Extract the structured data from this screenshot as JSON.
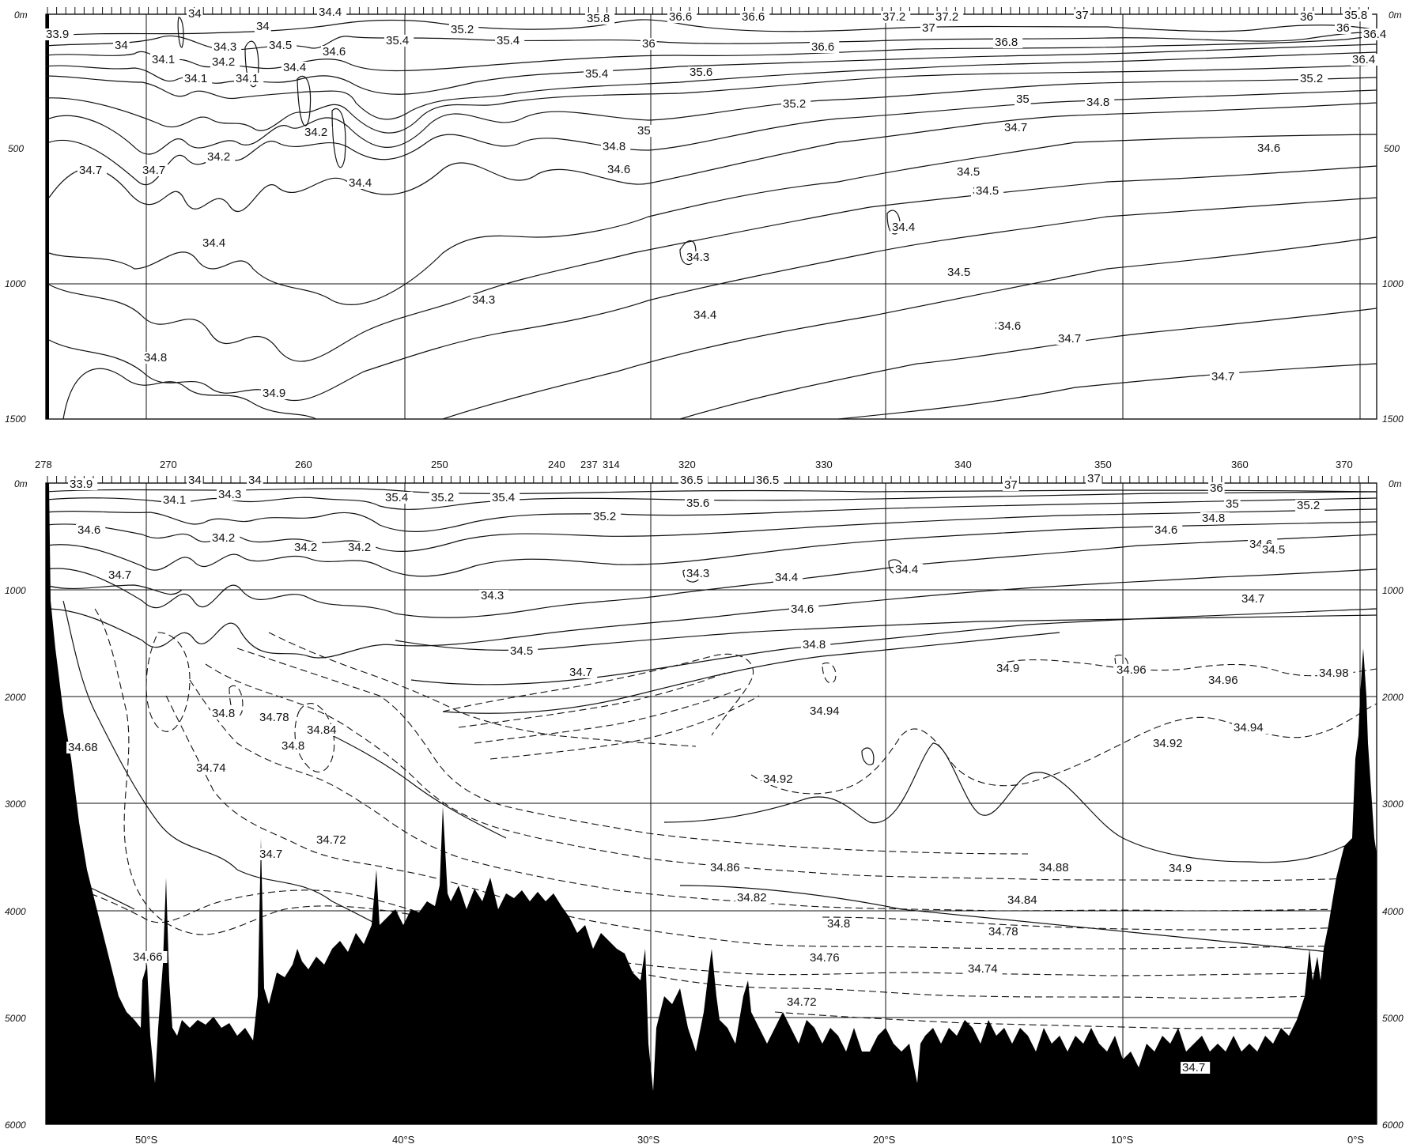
{
  "upper_panel": {
    "depth_ticks": [
      "0m",
      "500",
      "1000",
      "1500"
    ],
    "contour_labels": [
      "33.9",
      "34",
      "34",
      "34",
      "34.4",
      "35.8",
      "36.6",
      "36.6",
      "37.2",
      "37.2",
      "37",
      "36",
      "35.8",
      "34.1",
      "34.3",
      "34.5",
      "34.6",
      "35.4",
      "35.2",
      "35.4",
      "36",
      "37",
      "36.8",
      "36.4",
      "36",
      "36.4",
      "34.2",
      "34.1",
      "34.1",
      "34.4",
      "36.6",
      "35.4",
      "35.6",
      "35.2",
      "34.5",
      "35",
      "34.8",
      "35.2",
      "34.2",
      "34.2",
      "34.4",
      "35",
      "34.8",
      "34.7",
      "34.6",
      "34.6",
      "34.2",
      "34.5",
      "34.4",
      "34.3",
      "34.4",
      "34.5",
      "34.3",
      "34.4",
      "34.6",
      "34.6",
      "34.7",
      "34.7",
      "34.8",
      "34.9",
      "34.7",
      "34.7"
    ]
  },
  "lower_panel": {
    "depth_ticks": [
      "0m",
      "1000",
      "2000",
      "3000",
      "4000",
      "5000",
      "6000"
    ],
    "station_labels": [
      "278",
      "270",
      "260",
      "250",
      "240",
      "237",
      "314",
      "320",
      "330",
      "340",
      "350",
      "360",
      "370"
    ],
    "lat_labels": [
      "50°S",
      "40°S",
      "30°S",
      "20°S",
      "10°S",
      "0°S"
    ],
    "contour_labels": [
      "33.9",
      "34.1",
      "34.3",
      "34",
      "34",
      "35.4",
      "35.2",
      "35.4",
      "36.5",
      "36.5",
      "37",
      "37",
      "36",
      "35",
      "35.2",
      "35.6",
      "35.2",
      "34.8",
      "34.6",
      "34.2",
      "34.2",
      "34.2",
      "34.6",
      "34.6",
      "34.5",
      "34.7",
      "34.3",
      "34.3",
      "34.4",
      "34.4",
      "34.7",
      "34.5",
      "34.6",
      "34.8",
      "34.9",
      "34.96",
      "34.96",
      "34.98",
      "34.7",
      "34.94",
      "34.94",
      "34.92",
      "34.8",
      "34.78",
      "34.84",
      "34.8",
      "34.68",
      "34.74",
      "34.92",
      "34.7",
      "34.72",
      "34.86",
      "34.88",
      "34.9",
      "34.82",
      "34.84",
      "34.8",
      "34.78",
      "34.66",
      "34.76",
      "34.74",
      "34.72",
      "34.7"
    ]
  }
}
